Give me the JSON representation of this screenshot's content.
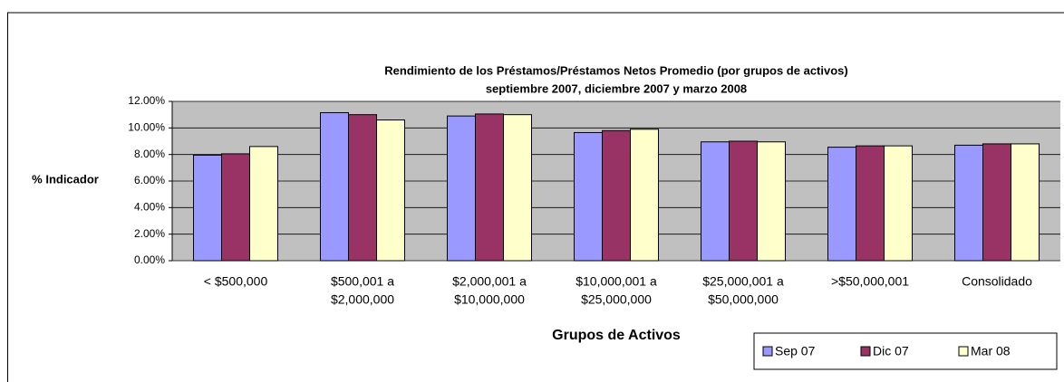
{
  "chart_data": {
    "type": "bar",
    "title": "Rendimiento de los Préstamos/Préstamos Netos Promedio (por grupos de activos)",
    "subtitle": "septiembre 2007, diciembre 2007 y marzo 2008",
    "x_label": "Grupos de Activos",
    "y_label": "% Indicador",
    "categories": [
      [
        "< $500,000"
      ],
      [
        "$500,001 a",
        "$2,000,000"
      ],
      [
        "$2,000,001 a",
        "$10,000,000"
      ],
      [
        "$10,000,001 a",
        "$25,000,000"
      ],
      [
        "$25,000,001 a",
        "$50,000,000"
      ],
      [
        ">$50,000,001"
      ],
      [
        "Consolidado"
      ]
    ],
    "series": [
      {
        "name": "Sep 07",
        "color": "#9999ff",
        "values": [
          7.95,
          11.15,
          10.9,
          9.65,
          8.95,
          8.55,
          8.7
        ]
      },
      {
        "name": "Dic 07",
        "color": "#993366",
        "values": [
          8.05,
          11.0,
          11.05,
          9.8,
          9.0,
          8.65,
          8.8
        ]
      },
      {
        "name": "Mar 08",
        "color": "#ffffcc",
        "values": [
          8.6,
          10.6,
          11.0,
          9.9,
          8.95,
          8.65,
          8.8
        ]
      }
    ],
    "ylim": [
      0,
      12
    ],
    "yticks": [
      {
        "value": 0,
        "label": "0.00%"
      },
      {
        "value": 2,
        "label": "2.00%"
      },
      {
        "value": 4,
        "label": "4.00%"
      },
      {
        "value": 6,
        "label": "6.00%"
      },
      {
        "value": 8,
        "label": "8.00%"
      },
      {
        "value": 10,
        "label": "10.00%"
      },
      {
        "value": 12,
        "label": "12.00%"
      }
    ],
    "grid": true,
    "legend_position": "bottom-right",
    "plot_background": "#c0c0c0"
  }
}
